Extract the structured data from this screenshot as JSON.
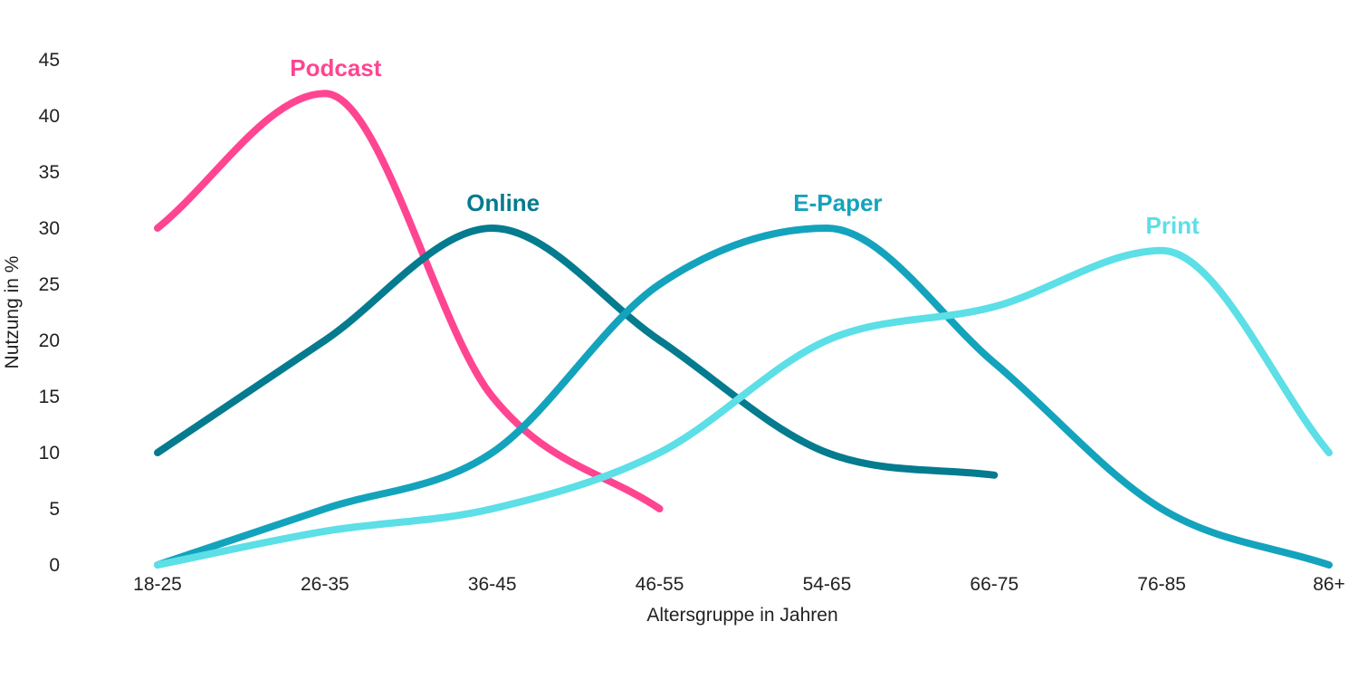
{
  "chart_data": {
    "type": "line",
    "title": "",
    "xlabel": "Altersgruppe in Jahren",
    "ylabel": "Nutzung in %",
    "categories": [
      "18-25",
      "26-35",
      "36-45",
      "46-55",
      "54-65",
      "66-75",
      "76-85",
      "86+"
    ],
    "ylim": [
      0,
      45
    ],
    "yticks": [
      0,
      5,
      10,
      15,
      20,
      25,
      30,
      35,
      40,
      45
    ],
    "grid": false,
    "legend": "inline labels",
    "series": [
      {
        "name": "Podcast",
        "color": "#FF4591",
        "values": [
          30,
          42,
          15,
          5,
          null,
          null,
          null,
          null
        ]
      },
      {
        "name": "Online",
        "color": "#047B8E",
        "values": [
          10,
          20,
          30,
          20,
          10,
          8,
          null,
          null
        ]
      },
      {
        "name": "E-Paper",
        "color": "#14A3BC",
        "values": [
          0,
          5,
          10,
          25,
          30,
          18,
          5,
          0
        ]
      },
      {
        "name": "Print",
        "color": "#5CDFE6",
        "values": [
          0,
          3,
          5,
          10,
          20,
          23,
          28,
          10
        ]
      }
    ]
  }
}
